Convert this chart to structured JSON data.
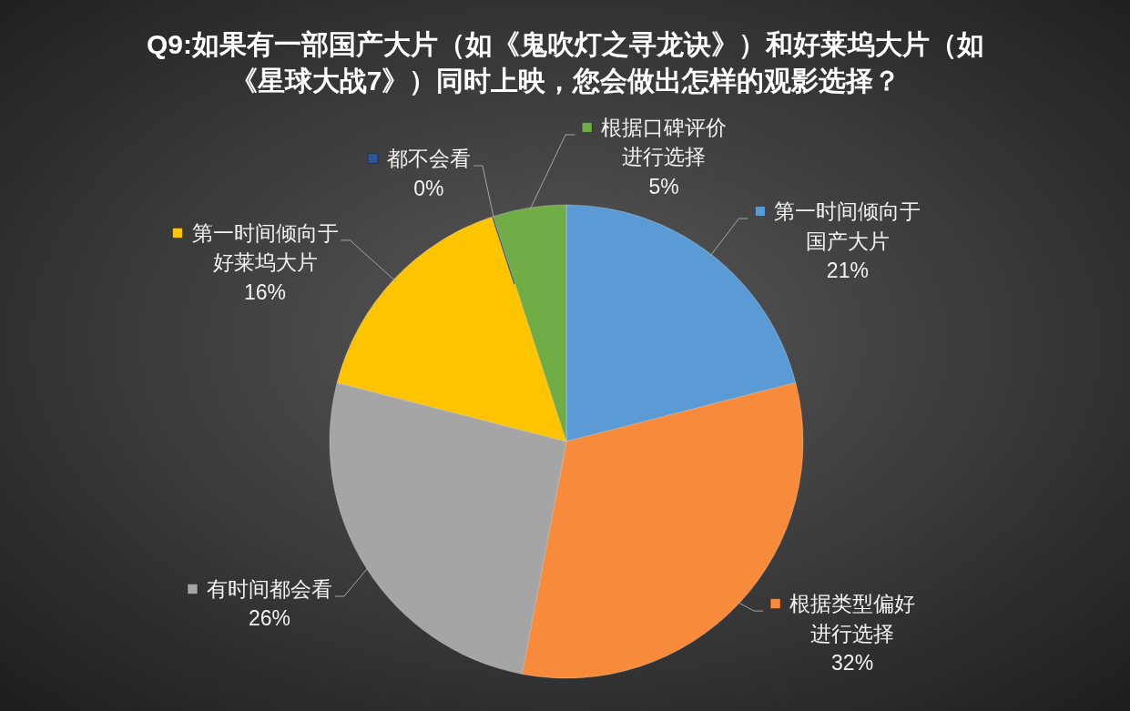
{
  "chart_data": {
    "type": "pie",
    "title": "Q9:如果有一部国产大片（如《鬼吹灯之寻龙诀》）和好莱坞大片（如《星球大战7》）同时上映，您会做出怎样的观影选择？",
    "categories": [
      "第一时间倾向于国产大片",
      "根据类型偏好进行选择",
      "有时间都会看",
      "第一时间倾向于好莱坞大片",
      "都不会看",
      "根据口碑评价进行选择"
    ],
    "values": [
      21,
      32,
      26,
      16,
      0,
      5
    ],
    "colors": [
      "#5b9bd5",
      "#f88b3b",
      "#a5a5a5",
      "#ffc400",
      "#2f5597",
      "#70ad47"
    ],
    "value_labels": [
      "21%",
      "32%",
      "26%",
      "16%",
      "0%",
      "5%"
    ],
    "legend": "top"
  }
}
